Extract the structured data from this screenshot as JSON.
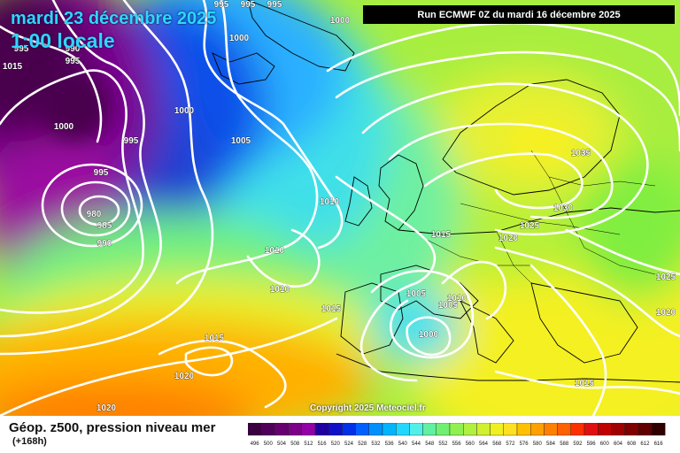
{
  "header": {
    "date": "mardi 23 décembre 2025",
    "time": "1:00 locale",
    "run": "Run ECMWF 0Z du mardi 16 décembre 2025"
  },
  "footer": {
    "copyright": "Copyright 2025 Meteociel.fr",
    "title": "Géop. z500, pression niveau mer",
    "subtitle": "(+168h)"
  },
  "legend": {
    "ticks": [
      "496",
      "500",
      "504",
      "508",
      "512",
      "516",
      "520",
      "524",
      "528",
      "532",
      "536",
      "540",
      "544",
      "548",
      "552",
      "556",
      "560",
      "564",
      "568",
      "572",
      "576",
      "580",
      "584",
      "588",
      "592",
      "596",
      "600",
      "604",
      "608",
      "612",
      "616"
    ],
    "colors": [
      "#3a0040",
      "#50005a",
      "#660070",
      "#7c0088",
      "#9400a8",
      "#2000a0",
      "#1010c8",
      "#0030e8",
      "#0060ff",
      "#0090ff",
      "#00b4ff",
      "#20d8ff",
      "#50f0e8",
      "#60f0a0",
      "#70f070",
      "#90f050",
      "#b0f040",
      "#d0f030",
      "#f0f020",
      "#ffe020",
      "#ffc000",
      "#ffa000",
      "#ff8000",
      "#ff6000",
      "#ff3000",
      "#e01010",
      "#c00000",
      "#a00000",
      "#800000",
      "#600000",
      "#300000"
    ]
  },
  "isobars": {
    "labels": [
      {
        "text": "995"
      },
      {
        "text": "995"
      },
      {
        "text": "995"
      },
      {
        "text": "1000"
      },
      {
        "text": "1000"
      },
      {
        "text": "995"
      },
      {
        "text": "990"
      },
      {
        "text": "995"
      },
      {
        "text": "1000"
      },
      {
        "text": "1000"
      },
      {
        "text": "995"
      },
      {
        "text": "1005"
      },
      {
        "text": "995"
      },
      {
        "text": "980"
      },
      {
        "text": "985"
      },
      {
        "text": "990"
      },
      {
        "text": "1010"
      },
      {
        "text": "1010"
      },
      {
        "text": "1010"
      },
      {
        "text": "1015"
      },
      {
        "text": "1015"
      },
      {
        "text": "1020"
      },
      {
        "text": "1020"
      },
      {
        "text": "1015"
      },
      {
        "text": "1005"
      },
      {
        "text": "1010"
      },
      {
        "text": "1005"
      },
      {
        "text": "1000"
      },
      {
        "text": "1015"
      },
      {
        "text": "1020"
      },
      {
        "text": "1025"
      },
      {
        "text": "1030"
      },
      {
        "text": "1035"
      },
      {
        "text": "1025"
      },
      {
        "text": "1020"
      },
      {
        "text": "1015"
      }
    ]
  }
}
